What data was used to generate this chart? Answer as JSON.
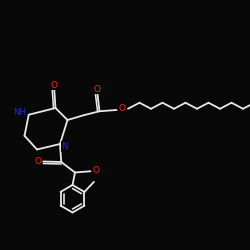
{
  "bg_color": "#080808",
  "bond_color": "#e8e8e8",
  "O_color": "#ff2222",
  "N_color": "#2222ff",
  "bond_lw": 1.3,
  "dpi": 100,
  "figsize": [
    2.5,
    2.5
  ],
  "xlim": [
    0.0,
    1.0
  ],
  "ylim": [
    0.0,
    1.0
  ]
}
